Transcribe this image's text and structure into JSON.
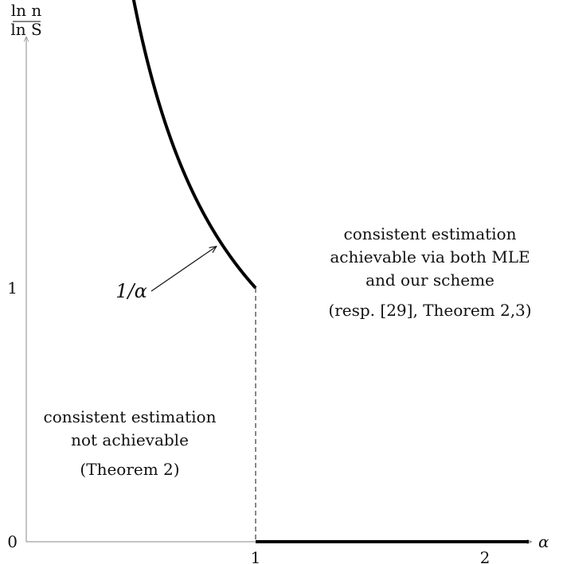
{
  "chart_data": {
    "type": "line",
    "title": "",
    "xlabel": "α",
    "ylabel": {
      "numerator": "ln n",
      "denominator": "ln S"
    },
    "xlim": [
      0,
      2.25
    ],
    "ylim": [
      0,
      2.27
    ],
    "x_ticks": [
      {
        "value": 1,
        "label": "1"
      },
      {
        "value": 2,
        "label": "2"
      }
    ],
    "y_ticks": [
      {
        "value": 0,
        "label": "0"
      },
      {
        "value": 1,
        "label": "1"
      }
    ],
    "series": [
      {
        "formula": "1/alpha",
        "domain": [
          0.44,
          1
        ],
        "points": [
          [
            0.44,
            2.27
          ],
          [
            0.5,
            2.0
          ],
          [
            0.6,
            1.667
          ],
          [
            0.7,
            1.429
          ],
          [
            0.8,
            1.25
          ],
          [
            0.9,
            1.111
          ],
          [
            1.0,
            1.0
          ]
        ]
      },
      {
        "points": [
          [
            1,
            0
          ],
          [
            2.25,
            0
          ]
        ]
      }
    ],
    "boundary": {
      "x": 1,
      "y_range": [
        0,
        1
      ],
      "style": "dashed"
    },
    "annotations": {
      "curve_label": {
        "text": "1/α",
        "at": [
          0.5,
          1.0
        ],
        "arrow_to_x": 0.85
      },
      "right_region": {
        "lines": [
          "consistent estimation",
          "achievable via both MLE",
          "and our scheme"
        ],
        "ref": "(resp. [29], Theorem 2,3)"
      },
      "left_region": {
        "lines": [
          "consistent estimation",
          "not achievable"
        ],
        "ref": "(Theorem 2)"
      }
    }
  }
}
